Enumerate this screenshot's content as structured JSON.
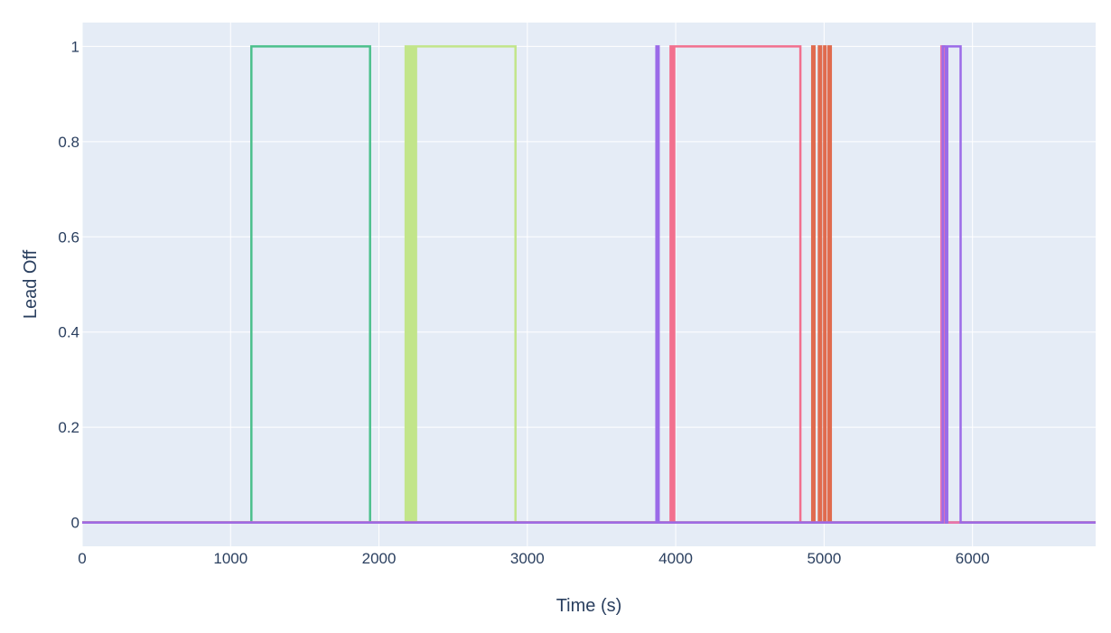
{
  "chart_data": {
    "type": "line",
    "xlabel": "Time (s)",
    "ylabel": "Lead Off",
    "xlim": [
      0,
      6830
    ],
    "ylim": [
      -0.05,
      1.05
    ],
    "xticks": [
      0,
      1000,
      2000,
      3000,
      4000,
      5000,
      6000
    ],
    "yticks": [
      0,
      0.2,
      0.4,
      0.6,
      0.8,
      1
    ],
    "ytick_labels": [
      "0",
      "0.2",
      "0.4",
      "0.6",
      "0.8",
      "1"
    ],
    "grid": true,
    "background": "#e5ecf6",
    "series": [
      {
        "color": "#4cc08c",
        "x": [
          0,
          1140,
          1140,
          1940,
          1940,
          6830
        ],
        "y": [
          0,
          0,
          1,
          1,
          0,
          0
        ]
      },
      {
        "color": "#c2e58a",
        "x": [
          0,
          2180,
          2180,
          2195,
          2195,
          2205,
          2205,
          2220,
          2220,
          2228,
          2228,
          2240,
          2240,
          2250,
          2250,
          2262,
          2262,
          2920,
          2920,
          6830
        ],
        "y": [
          0,
          0,
          1,
          1,
          0,
          0,
          1,
          1,
          0,
          0,
          1,
          1,
          0,
          0,
          1,
          1,
          1,
          1,
          0,
          0
        ]
      },
      {
        "color": "#f2708e",
        "x": [
          0,
          3965,
          3965,
          3980,
          3980,
          3990,
          3990,
          4005,
          4005,
          4840,
          4840,
          6830
        ],
        "y": [
          0,
          0,
          1,
          1,
          0,
          0,
          1,
          1,
          1,
          1,
          0,
          0
        ]
      },
      {
        "color": "#e06b4e",
        "x": [
          0,
          4920,
          4920,
          4935,
          4935,
          4965,
          4965,
          4980,
          4980,
          5000,
          5000,
          5010,
          5010,
          5030,
          5030,
          5045,
          5045,
          6830
        ],
        "y": [
          0,
          0,
          1,
          1,
          0,
          0,
          1,
          1,
          0,
          0,
          1,
          1,
          0,
          0,
          1,
          1,
          0,
          0
        ]
      },
      {
        "color": "#e874b0",
        "x": [
          0,
          5790,
          5790,
          5810,
          5810,
          6830
        ],
        "y": [
          0,
          0,
          1,
          1,
          0,
          0
        ]
      },
      {
        "color": "#9b6be8",
        "x": [
          0,
          3870,
          3870,
          3885,
          3885,
          5800,
          5800,
          5820,
          5820,
          5830,
          5830,
          5920,
          5920,
          6830
        ],
        "y": [
          0,
          0,
          1,
          1,
          0,
          0,
          1,
          1,
          0,
          0,
          1,
          1,
          0,
          0
        ]
      }
    ]
  }
}
